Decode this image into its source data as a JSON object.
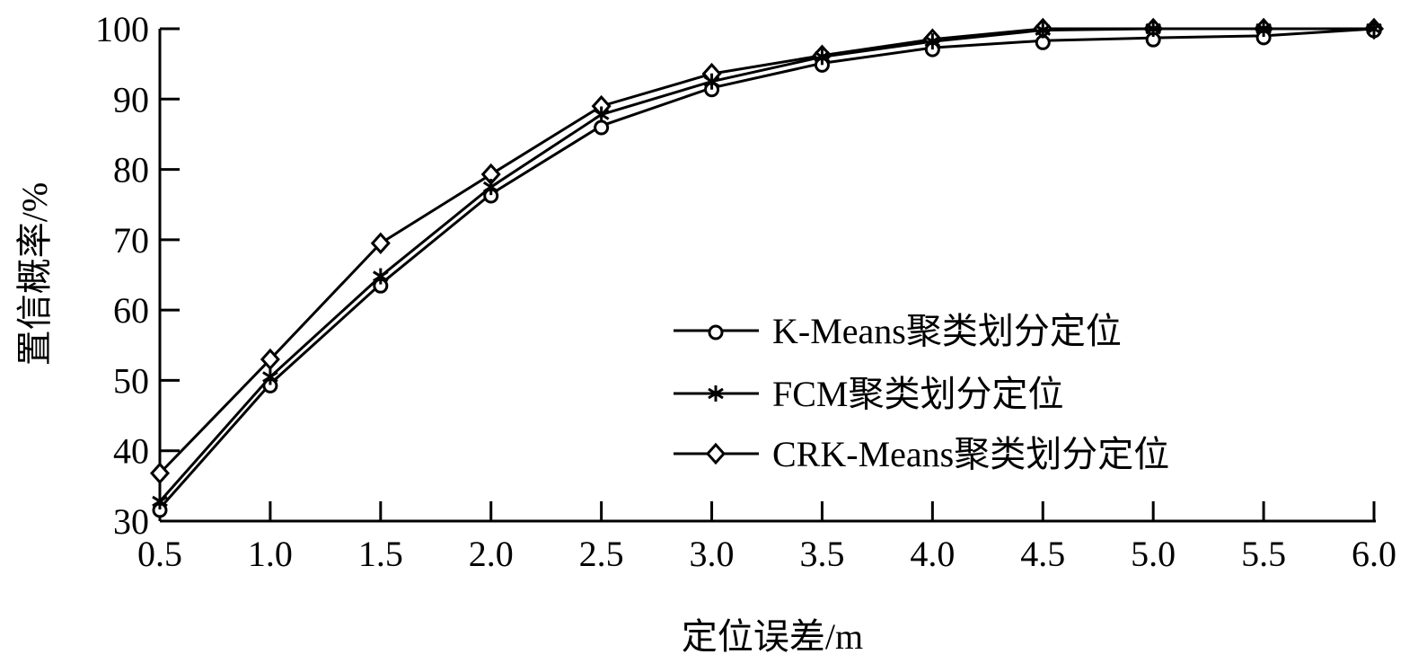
{
  "chart_data": {
    "type": "line",
    "title": "",
    "xlabel": "定位误差/m",
    "ylabel": "置信概率/%",
    "xlim": [
      0.5,
      6.0
    ],
    "ylim": [
      30,
      100
    ],
    "x": [
      0.5,
      1.0,
      1.5,
      2.0,
      2.5,
      3.0,
      3.5,
      4.0,
      4.5,
      5.0,
      5.5,
      6.0
    ],
    "xticks": [
      "0.5",
      "1.0",
      "1.5",
      "2.0",
      "2.5",
      "3.0",
      "3.5",
      "4.0",
      "4.5",
      "5.0",
      "5.5",
      "6.0"
    ],
    "yticks": [
      "30",
      "40",
      "50",
      "60",
      "70",
      "80",
      "90",
      "100"
    ],
    "grid": false,
    "legend_position": "center-right",
    "series": [
      {
        "name": "K-Means聚类划分定位",
        "marker": "circle",
        "color": "#000000",
        "values": [
          31.8,
          49.5,
          63.7,
          76.5,
          86.2,
          91.6,
          95.1,
          97.3,
          98.3,
          98.7,
          99.0,
          100
        ]
      },
      {
        "name": "FCM聚类划分定位",
        "marker": "asterisk",
        "color": "#000000",
        "values": [
          32.8,
          50.5,
          64.8,
          77.5,
          87.8,
          92.5,
          96.0,
          98.2,
          99.8,
          100,
          100,
          100
        ]
      },
      {
        "name": "CRK-Means聚类划分定位",
        "marker": "diamond",
        "color": "#000000",
        "values": [
          36.8,
          53.0,
          69.5,
          79.3,
          89.0,
          93.6,
          96.2,
          98.5,
          100,
          100,
          100,
          100
        ]
      }
    ]
  }
}
